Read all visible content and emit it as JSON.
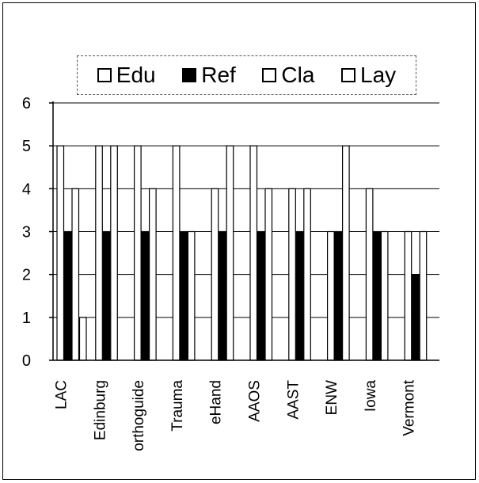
{
  "chart_data": {
    "type": "bar",
    "categories": [
      "LAC",
      "Edinburg",
      "orthoguide",
      "Trauma",
      "eHand",
      "AAOS",
      "AAST",
      "ENW",
      "Iowa",
      "Vermont"
    ],
    "series": [
      {
        "name": "Edu",
        "values": [
          5,
          5,
          5,
          5,
          4,
          5,
          4,
          3,
          4,
          3
        ],
        "fill": "#ffffff"
      },
      {
        "name": "Ref",
        "values": [
          3,
          3,
          3,
          3,
          3,
          3,
          3,
          3,
          3,
          2
        ],
        "fill": "#000000"
      },
      {
        "name": "Cla",
        "values": [
          4,
          5,
          4,
          3,
          5,
          4,
          4,
          5,
          3,
          3
        ],
        "fill": "#ffffff"
      },
      {
        "name": "Lay",
        "values": [
          1,
          0,
          0,
          0,
          0,
          0,
          0,
          0,
          0,
          0
        ],
        "fill": "#ffffff"
      }
    ],
    "y_ticks": [
      "0",
      "1",
      "2",
      "3",
      "4",
      "5",
      "6"
    ],
    "ylim": [
      0,
      6
    ],
    "grid": true,
    "legend_position": "top"
  }
}
